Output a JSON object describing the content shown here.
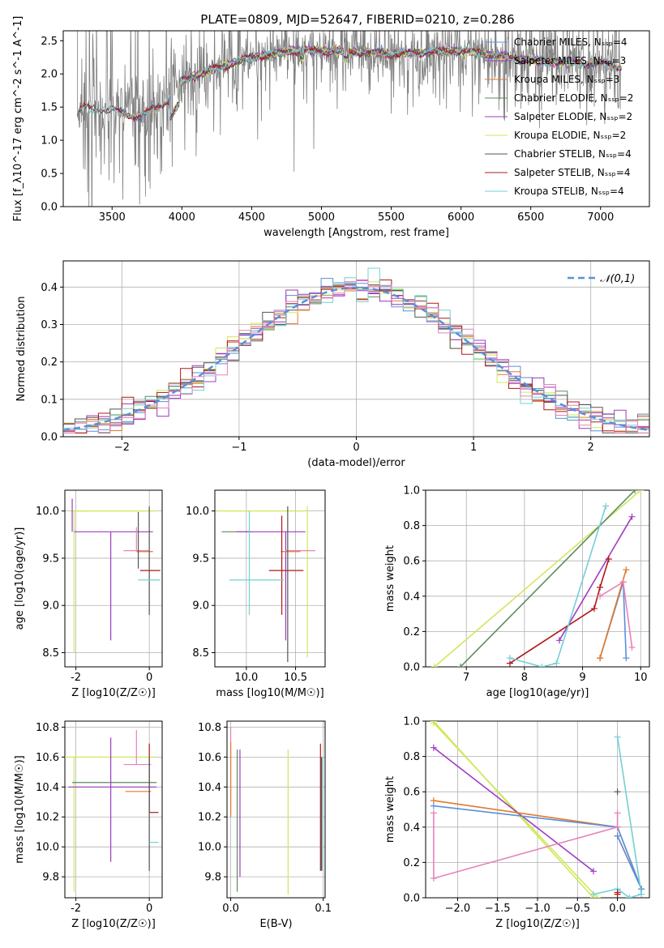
{
  "figure_title": "PLATE=0809, MJD=52647, FIBERID=0210, z=0.286",
  "colors": {
    "Chabrier MILES": "#5b8fd9",
    "Salpeter MILES": "#9b35b8",
    "Kroupa MILES": "#e07a2e",
    "Chabrier ELODIE": "#5e8a62",
    "Salpeter ELODIE": "#a03cc0",
    "Kroupa ELODIE": "#cfe85a",
    "Chabrier STELIB": "#555555",
    "Salpeter STELIB": "#b01818",
    "Kroupa STELIB": "#74cfd4",
    "Pink": "#e682b8",
    "Data": "#808080"
  },
  "chart_data": [
    {
      "id": "spectrum",
      "type": "line",
      "title": "PLATE=0809, MJD=52647, FIBERID=0210, z=0.286",
      "xlabel": "wavelength [Angstrom, rest frame]",
      "ylabel": "Flux [f_λ10^-17 erg cm^-2 s^-1 A^-1]",
      "xlim": [
        3150,
        7350
      ],
      "ylim": [
        0,
        2.65
      ],
      "xticks": [
        3500,
        4000,
        4500,
        5000,
        5500,
        6000,
        6500,
        7000
      ],
      "yticks": [
        0.0,
        0.5,
        1.0,
        1.5,
        2.0,
        2.5
      ],
      "legend_position": "top-right",
      "data_series": {
        "name": "",
        "x_range": [
          3250,
          7150
        ],
        "approx_continuum": [
          [
            3250,
            1.4
          ],
          [
            3300,
            1.5
          ],
          [
            3500,
            1.45
          ],
          [
            3700,
            1.35
          ],
          [
            3900,
            1.6
          ],
          [
            4000,
            1.9
          ],
          [
            4200,
            2.05
          ],
          [
            4500,
            2.25
          ],
          [
            4800,
            2.35
          ],
          [
            5000,
            2.35
          ],
          [
            5500,
            2.3
          ],
          [
            6000,
            2.35
          ],
          [
            6500,
            2.2
          ],
          [
            7000,
            2.15
          ],
          [
            7150,
            2.1
          ]
        ]
      },
      "model_series": [
        {
          "name": "Chabrier MILES, N_SSP=4",
          "x_range": [
            3540,
            7150
          ]
        },
        {
          "name": "Salpeter MILES, N_SSP=3",
          "x_range": [
            3540,
            7150
          ]
        },
        {
          "name": "Kroupa MILES, N_SSP=3",
          "x_range": [
            3540,
            7150
          ]
        },
        {
          "name": "Chabrier ELODIE, N_SSP=2",
          "x_range": [
            3900,
            6800
          ]
        },
        {
          "name": "Salpeter ELODIE, N_SSP=2",
          "x_range": [
            3900,
            6800
          ]
        },
        {
          "name": "Kroupa ELODIE, N_SSP=2",
          "x_range": [
            3900,
            6800
          ]
        },
        {
          "name": "Chabrier STELIB, N_SSP=4",
          "x_range": [
            3250,
            7150
          ]
        },
        {
          "name": "Salpeter STELIB, N_SSP=4",
          "x_range": [
            3250,
            7150
          ]
        },
        {
          "name": "Kroupa STELIB, N_SSP=4",
          "x_range": [
            3250,
            7150
          ]
        }
      ]
    },
    {
      "id": "residuals",
      "type": "histogram",
      "xlabel": "(data-model)/error",
      "ylabel": "Normed distribution",
      "xlim": [
        -2.5,
        2.5
      ],
      "ylim": [
        0,
        0.47
      ],
      "xticks": [
        -2,
        -1,
        0,
        1,
        2
      ],
      "yticks": [
        0.0,
        0.1,
        0.2,
        0.3,
        0.4
      ],
      "grid": true,
      "legend_position": "top-right",
      "bins": 50,
      "reference_curve": {
        "name": "𝒩(0,1)",
        "style": "dashed",
        "mu": 0,
        "sigma": 1
      }
    },
    {
      "id": "age_vs_Z",
      "type": "scatter",
      "xlabel": "Z [log10(Z/Z☉)]",
      "ylabel": "age  [log10(age/yr)]",
      "xlim": [
        -2.3,
        0.35
      ],
      "ylim": [
        8.35,
        10.22
      ],
      "xticks": [
        -2,
        0
      ],
      "yticks": [
        8.5,
        9.0,
        9.5,
        10.0
      ],
      "grid": true,
      "points": [
        {
          "series": "Kroupa ELODIE",
          "x": -2.05,
          "y": 10.0,
          "xerr": [
            0.1,
            0.4
          ],
          "yerr": [
            1.5,
            0.0
          ]
        },
        {
          "series": "Kroupa ELODIE",
          "x": -1.5,
          "y": 10.0,
          "xerr": [
            0.6,
            1.7
          ],
          "yerr": [
            0.0,
            0.0
          ]
        },
        {
          "series": "Salpeter ELODIE",
          "x": -1.05,
          "y": 9.78,
          "xerr": [
            1.0,
            1.15
          ],
          "yerr": [
            1.15,
            0.0
          ]
        },
        {
          "series": "Salpeter ELODIE",
          "x": -2.1,
          "y": 9.78,
          "xerr": [
            0.0,
            0.0
          ],
          "yerr": [
            0.0,
            0.35
          ]
        },
        {
          "series": "Pink",
          "x": -0.35,
          "y": 9.58,
          "xerr": [
            0.35,
            0.35
          ],
          "yerr": [
            0.0,
            0.25
          ]
        },
        {
          "series": "Kroupa MILES",
          "x": -0.05,
          "y": 9.57,
          "xerr": [
            0.3,
            0.15
          ],
          "yerr": [
            0.0,
            0.0
          ]
        },
        {
          "series": "Chabrier STELIB",
          "x": -0.3,
          "y": 9.99,
          "xerr": [
            0.0,
            0.0
          ],
          "yerr": [
            0.6,
            0.0
          ]
        },
        {
          "series": "Salpeter STELIB",
          "x": 0.05,
          "y": 9.37,
          "xerr": [
            0.3,
            0.25
          ],
          "yerr": [
            0.0,
            0.0
          ]
        },
        {
          "series": "Chabrier STELIB",
          "x": 0.0,
          "y": 9.6,
          "xerr": [
            0.0,
            0.0
          ],
          "yerr": [
            0.7,
            0.45
          ]
        },
        {
          "series": "Kroupa STELIB",
          "x": 0.0,
          "y": 9.27,
          "xerr": [
            0.3,
            0.3
          ],
          "yerr": [
            0.0,
            0.0
          ]
        }
      ]
    },
    {
      "id": "age_vs_mass",
      "type": "scatter",
      "xlabel": "mass [log10(M/M☉)]",
      "ylabel": "",
      "xlim": [
        9.68,
        10.8
      ],
      "ylim": [
        8.35,
        10.22
      ],
      "xticks": [
        10.0,
        10.5
      ],
      "yticks": [
        8.5,
        9.0,
        9.5,
        10.0
      ],
      "grid": true,
      "points": [
        {
          "series": "Kroupa ELODIE",
          "x": 10.3,
          "y": 10.0,
          "xerr": [
            0.6,
            0.3
          ],
          "yerr": [
            0.0,
            0.0
          ]
        },
        {
          "series": "Kroupa ELODIE",
          "x": 10.62,
          "y": 9.0,
          "xerr": [
            0.0,
            0.0
          ],
          "yerr": [
            0.55,
            1.05
          ]
        },
        {
          "series": "Chabrier ELODIE",
          "x": 10.05,
          "y": 9.78,
          "xerr": [
            0.3,
            0.0
          ],
          "yerr": [
            0.0,
            0.0
          ]
        },
        {
          "series": "Salpeter ELODIE",
          "x": 10.4,
          "y": 9.78,
          "xerr": [
            0.5,
            0.2
          ],
          "yerr": [
            1.15,
            0.0
          ]
        },
        {
          "series": "Kroupa MILES",
          "x": 10.55,
          "y": 9.57,
          "xerr": [
            0.2,
            0.0
          ],
          "yerr": [
            0.0,
            0.0
          ]
        },
        {
          "series": "Pink",
          "x": 10.6,
          "y": 9.58,
          "xerr": [
            0.2,
            0.1
          ],
          "yerr": [
            0.0,
            0.0
          ]
        },
        {
          "series": "Salpeter STELIB",
          "x": 10.23,
          "y": 9.37,
          "xerr": [
            0.0,
            0.35
          ],
          "yerr": [
            0.0,
            0.0
          ]
        },
        {
          "series": "Salpeter STELIB",
          "x": 10.36,
          "y": 9.6,
          "xerr": [
            0.0,
            0.0
          ],
          "yerr": [
            0.7,
            0.35
          ]
        },
        {
          "series": "Kroupa STELIB",
          "x": 10.03,
          "y": 9.27,
          "xerr": [
            0.2,
            0.35
          ],
          "yerr": [
            0.0,
            0.0
          ]
        },
        {
          "series": "Kroupa STELIB",
          "x": 10.03,
          "y": 9.5,
          "xerr": [
            0.0,
            0.0
          ],
          "yerr": [
            0.6,
            0.5
          ]
        },
        {
          "series": "Chabrier STELIB",
          "x": 10.42,
          "y": 9.4,
          "xerr": [
            0.0,
            0.0
          ],
          "yerr": [
            1.0,
            0.65
          ]
        }
      ]
    },
    {
      "id": "weight_vs_age",
      "type": "line",
      "xlabel": "age  [log10(age/yr)]",
      "ylabel": "mass weight",
      "xlim": [
        6.3,
        10.15
      ],
      "ylim": [
        0,
        1.0
      ],
      "xticks": [
        7,
        8,
        9,
        10
      ],
      "yticks": [
        0.0,
        0.2,
        0.4,
        0.6,
        0.8,
        1.0
      ],
      "grid": true,
      "series": [
        {
          "name": "Kroupa ELODIE",
          "x": [
            6.45,
            10.0
          ],
          "y": [
            0.0,
            1.0
          ]
        },
        {
          "name": "Chabrier ELODIE",
          "x": [
            6.9,
            9.9
          ],
          "y": [
            0.0,
            1.0
          ]
        },
        {
          "name": "Salpeter ELODIE",
          "x": [
            8.6,
            9.85
          ],
          "y": [
            0.15,
            0.85
          ]
        },
        {
          "name": "Salpeter STELIB",
          "x": [
            7.75,
            9.2,
            9.3,
            9.45
          ],
          "y": [
            0.02,
            0.33,
            0.45,
            0.61
          ]
        },
        {
          "name": "Kroupa STELIB",
          "x": [
            7.75,
            8.3,
            8.55,
            9.4
          ],
          "y": [
            0.05,
            0.0,
            0.02,
            0.91
          ]
        },
        {
          "name": "Chabrier MILES",
          "x": [
            9.3,
            9.7,
            9.75
          ],
          "y": [
            0.05,
            0.48,
            0.05
          ]
        },
        {
          "name": "Kroupa MILES",
          "x": [
            9.3,
            9.75,
            9.3
          ],
          "y": [
            0.05,
            0.55,
            0.05
          ]
        },
        {
          "name": "Pink",
          "x": [
            9.3,
            9.7,
            9.85
          ],
          "y": [
            0.4,
            0.48,
            0.11
          ]
        }
      ]
    },
    {
      "id": "mass_vs_Z",
      "type": "scatter",
      "xlabel": "Z [log10(Z/Z☉)]",
      "ylabel": "mass [log10(M/M☉)]",
      "xlim": [
        -2.3,
        0.35
      ],
      "ylim": [
        9.66,
        10.84
      ],
      "xticks": [
        -2,
        0
      ],
      "yticks": [
        9.8,
        10.0,
        10.2,
        10.4,
        10.6,
        10.8
      ],
      "grid": true,
      "points": [
        {
          "series": "Kroupa ELODIE",
          "x": -2.05,
          "y": 10.6,
          "xerr": [
            0.3,
            2.2
          ],
          "yerr": [
            0.9,
            0.0
          ]
        },
        {
          "series": "Chabrier ELODIE",
          "x": -2.1,
          "y": 10.43,
          "xerr": [
            0.0,
            2.3
          ],
          "yerr": [
            0.0,
            0.0
          ]
        },
        {
          "series": "Salpeter ELODIE",
          "x": -1.05,
          "y": 10.4,
          "xerr": [
            1.15,
            1.25
          ],
          "yerr": [
            0.5,
            0.33
          ]
        },
        {
          "series": "Pink",
          "x": -0.35,
          "y": 10.55,
          "xerr": [
            0.35,
            0.4
          ],
          "yerr": [
            0.0,
            0.23
          ]
        },
        {
          "series": "Kroupa MILES",
          "x": -0.15,
          "y": 10.37,
          "xerr": [
            0.5,
            0.2
          ],
          "yerr": [
            0.0,
            0.0
          ]
        },
        {
          "series": "Salpeter STELIB",
          "x": 0.0,
          "y": 10.23,
          "xerr": [
            0.0,
            0.25
          ],
          "yerr": [
            0.0,
            0.46
          ]
        },
        {
          "series": "Chabrier STELIB",
          "x": 0.0,
          "y": 10.3,
          "xerr": [
            0.0,
            0.0
          ],
          "yerr": [
            0.46,
            0.3
          ]
        },
        {
          "series": "Kroupa STELIB",
          "x": 0.0,
          "y": 10.03,
          "xerr": [
            0.0,
            0.25
          ],
          "yerr": [
            0.0,
            0.0
          ]
        }
      ]
    },
    {
      "id": "mass_vs_ebv",
      "type": "scatter",
      "xlabel": "E(B-V)",
      "ylabel": "",
      "xlim": [
        -0.004,
        0.102
      ],
      "ylim": [
        9.66,
        10.84
      ],
      "xticks": [
        0.0,
        0.1
      ],
      "yticks": [
        9.8,
        10.0,
        10.2,
        10.4,
        10.6,
        10.8
      ],
      "grid": true,
      "points": [
        {
          "series": "Pink",
          "x": 0.0,
          "y": 10.6,
          "yerr": [
            0.38,
            0.2
          ]
        },
        {
          "series": "Kroupa MILES",
          "x": 0.0,
          "y": 10.5,
          "yerr": [
            0.3,
            0.2
          ]
        },
        {
          "series": "Chabrier ELODIE",
          "x": 0.007,
          "y": 10.2,
          "yerr": [
            0.5,
            0.45
          ]
        },
        {
          "series": "Salpeter ELODIE",
          "x": 0.01,
          "y": 10.3,
          "yerr": [
            0.5,
            0.35
          ]
        },
        {
          "series": "Kroupa ELODIE",
          "x": 0.062,
          "y": 10.2,
          "yerr": [
            0.52,
            0.45
          ]
        },
        {
          "series": "Salpeter STELIB",
          "x": 0.097,
          "y": 10.3,
          "yerr": [
            0.46,
            0.39
          ]
        },
        {
          "series": "Chabrier STELIB",
          "x": 0.098,
          "y": 10.2,
          "yerr": [
            0.36,
            0.4
          ]
        },
        {
          "series": "Kroupa STELIB",
          "x": 0.099,
          "y": 10.2,
          "yerr": [
            0.36,
            0.4
          ]
        }
      ]
    },
    {
      "id": "weight_vs_Z",
      "type": "line",
      "xlabel": "Z [log10(Z/Z☉)]",
      "ylabel": "mass weight",
      "xlim": [
        -2.4,
        0.4
      ],
      "ylim": [
        0,
        1.0
      ],
      "xticks": [
        -2.0,
        -1.5,
        -1.0,
        -0.5,
        0.0
      ],
      "xticklabels": [
        "−2.0",
        "−1.5",
        "−1.0",
        "−0.5",
        "0.0"
      ],
      "yticks": [
        0.0,
        0.2,
        0.4,
        0.6,
        0.8,
        1.0
      ],
      "grid": true,
      "series": [
        {
          "name": "Kroupa ELODIE",
          "x": [
            -2.3,
            -0.3
          ],
          "y": [
            1.0,
            0.0
          ]
        },
        {
          "name": "Kroupa ELODIE",
          "x": [
            -2.3,
            -0.25
          ],
          "y": [
            0.99,
            0.0
          ]
        },
        {
          "name": "Salpeter ELODIE",
          "x": [
            -2.3,
            -0.3
          ],
          "y": [
            0.85,
            0.15
          ]
        },
        {
          "name": "Kroupa MILES",
          "x": [
            -2.3,
            0.0,
            0.3,
            0.0
          ],
          "y": [
            0.55,
            0.4,
            0.05,
            0.35
          ]
        },
        {
          "name": "Chabrier MILES",
          "x": [
            -2.3,
            0.0,
            0.3,
            0.0
          ],
          "y": [
            0.52,
            0.4,
            0.05,
            0.35
          ]
        },
        {
          "name": "Pink",
          "x": [
            -2.3,
            -2.3,
            0.0,
            0.0
          ],
          "y": [
            0.48,
            0.11,
            0.4,
            0.48
          ]
        },
        {
          "name": "Kroupa STELIB",
          "x": [
            -0.3,
            0.0,
            0.15,
            0.3,
            0.0
          ],
          "y": [
            0.02,
            0.05,
            0.0,
            0.02,
            0.91
          ]
        },
        {
          "name": "Salpeter STELIB",
          "x": [
            0.0,
            0.0
          ],
          "y": [
            0.02,
            0.03
          ]
        },
        {
          "name": "Chabrier STELIB",
          "x": [
            0.0
          ],
          "y": [
            0.6
          ]
        }
      ]
    }
  ]
}
